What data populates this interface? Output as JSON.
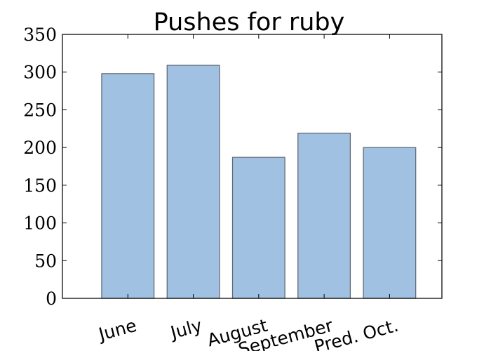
{
  "chart_data": {
    "type": "bar",
    "title": "Pushes for ruby",
    "xlabel": "",
    "ylabel": "",
    "categories": [
      "June",
      "July",
      "August",
      "September",
      "Pred. Oct."
    ],
    "values": [
      298,
      309,
      187,
      219,
      200
    ],
    "ylim": [
      0,
      350
    ],
    "yticks": [
      0,
      50,
      100,
      150,
      200,
      250,
      300,
      350
    ],
    "ytick_labels": [
      "0",
      "50",
      "100",
      "150",
      "200",
      "250",
      "300",
      "350"
    ],
    "grid": false,
    "legend": "none",
    "bar_color": "#a0c1e2",
    "bar_edge_color": "#5d6771"
  }
}
